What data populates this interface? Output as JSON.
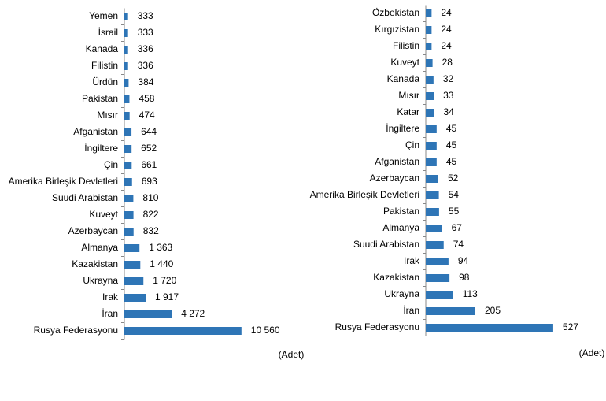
{
  "chart_data": [
    {
      "type": "bar",
      "orientation": "horizontal",
      "color": "#2e75b6",
      "unit_label": "(Adet)",
      "categories": [
        "Yemen",
        "İsrail",
        "Kanada",
        "Filistin",
        "Ürdün",
        "Pakistan",
        "Mısır",
        "Afganistan",
        "İngiltere",
        "Çin",
        "Amerika Birleşik Devletleri",
        "Suudi Arabistan",
        "Kuveyt",
        "Azerbaycan",
        "Almanya",
        "Kazakistan",
        "Ukrayna",
        "Irak",
        "İran",
        "Rusya Federasyonu"
      ],
      "values": [
        333,
        333,
        336,
        336,
        384,
        458,
        474,
        644,
        652,
        661,
        693,
        810,
        822,
        832,
        1363,
        1440,
        1720,
        1917,
        4272,
        10560
      ],
      "value_labels": [
        "333",
        "333",
        "336",
        "336",
        "384",
        "458",
        "474",
        "644",
        "652",
        "661",
        "693",
        "810",
        "822",
        "832",
        "1 363",
        "1 440",
        "1 720",
        "1 917",
        "4 272",
        "10 560"
      ],
      "xlim": [
        0,
        11000
      ]
    },
    {
      "type": "bar",
      "orientation": "horizontal",
      "color": "#2e75b6",
      "unit_label": "(Adet)",
      "categories": [
        "Özbekistan",
        "Kırgızistan",
        "Filistin",
        "Kuveyt",
        "Kanada",
        "Mısır",
        "Katar",
        "İngiltere",
        "Çin",
        "Afganistan",
        "Azerbaycan",
        "Amerika Birleşik Devletleri",
        "Pakistan",
        "Almanya",
        "Suudi Arabistan",
        "Irak",
        "Kazakistan",
        "Ukrayna",
        "İran",
        "Rusya Federasyonu"
      ],
      "values": [
        24,
        24,
        24,
        28,
        32,
        33,
        34,
        45,
        45,
        45,
        52,
        54,
        55,
        67,
        74,
        94,
        98,
        113,
        205,
        527
      ],
      "xlim": [
        0,
        550
      ]
    }
  ]
}
